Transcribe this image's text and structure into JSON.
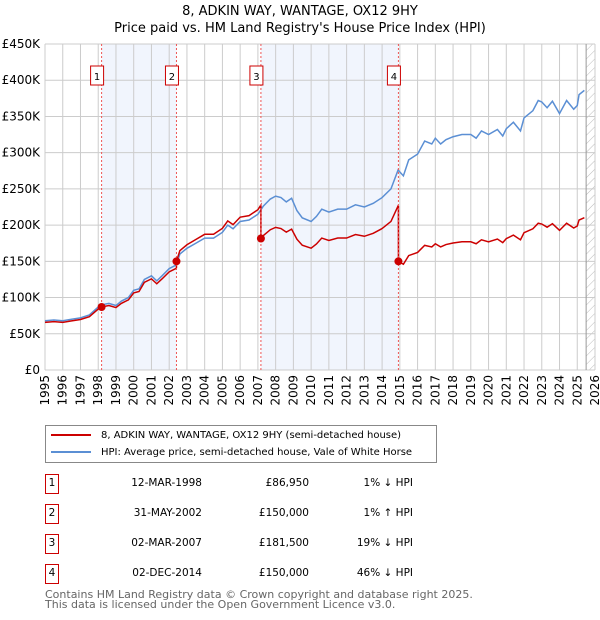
{
  "title": "8, ADKIN WAY, WANTAGE, OX12 9HY",
  "subtitle": "Price paid vs. HM Land Registry's House Price Index (HPI)",
  "chart_data": {
    "type": "line",
    "title": "8, ADKIN WAY, WANTAGE, OX12 9HY",
    "subtitle": "Price paid vs. HM Land Registry's House Price Index (HPI)",
    "xlim": [
      1995,
      2026
    ],
    "ylim": [
      0,
      450000
    ],
    "y_ticks": [
      {
        "v": 0,
        "label": "£0"
      },
      {
        "v": 50000,
        "label": "£50K"
      },
      {
        "v": 100000,
        "label": "£100K"
      },
      {
        "v": 150000,
        "label": "£150K"
      },
      {
        "v": 200000,
        "label": "£200K"
      },
      {
        "v": 250000,
        "label": "£250K"
      },
      {
        "v": 300000,
        "label": "£300K"
      },
      {
        "v": 350000,
        "label": "£350K"
      },
      {
        "v": 400000,
        "label": "£400K"
      },
      {
        "v": 450000,
        "label": "£450K"
      }
    ],
    "x_ticks": [
      "1995",
      "1996",
      "1997",
      "1998",
      "1999",
      "2000",
      "2001",
      "2002",
      "2003",
      "2004",
      "2005",
      "2006",
      "2007",
      "2008",
      "2009",
      "2010",
      "2011",
      "2012",
      "2013",
      "2014",
      "2015",
      "2016",
      "2017",
      "2018",
      "2019",
      "2020",
      "2021",
      "2022",
      "2023",
      "2024",
      "2025",
      "2026"
    ],
    "grid": true,
    "hpi_series": {
      "name": "HPI: Average price, semi-detached house, Vale of White Horse",
      "color": "#5b8fd4",
      "x": [
        1995,
        1995.5,
        1996,
        1996.5,
        1997,
        1997.5,
        1998,
        1998.2,
        1998.6,
        1999,
        1999.3,
        1999.7,
        2000,
        2000.3,
        2000.6,
        2001,
        2001.3,
        2001.6,
        2002,
        2002.4,
        2002.6,
        2003,
        2003.5,
        2004,
        2004.5,
        2005,
        2005.3,
        2005.6,
        2006,
        2006.5,
        2007,
        2007.3,
        2007.7,
        2008,
        2008.3,
        2008.6,
        2008.9,
        2009.2,
        2009.5,
        2010,
        2010.3,
        2010.6,
        2011,
        2011.5,
        2012,
        2012.5,
        2013,
        2013.5,
        2014,
        2014.5,
        2014.9,
        2015.2,
        2015.5,
        2016,
        2016.4,
        2016.8,
        2017,
        2017.3,
        2017.6,
        2018,
        2018.5,
        2019,
        2019.3,
        2019.6,
        2020,
        2020.5,
        2020.8,
        2021,
        2021.4,
        2021.8,
        2022,
        2022.5,
        2022.8,
        2023,
        2023.3,
        2023.6,
        2024,
        2024.4,
        2024.8,
        2025,
        2025.1,
        2025.4
      ],
      "y": [
        68000,
        69000,
        68000,
        70000,
        72000,
        76000,
        87000,
        90000,
        92000,
        89000,
        95000,
        100000,
        110000,
        112000,
        125000,
        130000,
        123000,
        130000,
        140000,
        145000,
        160000,
        168000,
        175000,
        182000,
        182000,
        190000,
        200000,
        195000,
        205000,
        207000,
        215000,
        226000,
        236000,
        240000,
        238000,
        232000,
        237000,
        220000,
        210000,
        205000,
        212000,
        222000,
        218000,
        222000,
        222000,
        228000,
        225000,
        230000,
        238000,
        250000,
        276000,
        268000,
        290000,
        298000,
        316000,
        312000,
        320000,
        312000,
        318000,
        322000,
        325000,
        325000,
        320000,
        330000,
        325000,
        332000,
        323000,
        333000,
        342000,
        330000,
        348000,
        358000,
        372000,
        370000,
        362000,
        371000,
        354000,
        372000,
        360000,
        365000,
        380000,
        386000
      ]
    },
    "price_series": {
      "name": "8, ADKIN WAY, WANTAGE, OX12 9HY (semi-detached house)",
      "color": "#cc0000"
    },
    "sales": [
      {
        "n": "1",
        "x": 1998.19,
        "date": "12-MAR-1998",
        "price": 86950,
        "price_label": "£86,950",
        "hpi": "1% ↓ HPI"
      },
      {
        "n": "2",
        "x": 2002.41,
        "date": "31-MAY-2002",
        "price": 150000,
        "price_label": "£150,000",
        "hpi": "1% ↑ HPI"
      },
      {
        "n": "3",
        "x": 2007.17,
        "date": "02-MAR-2007",
        "price": 181500,
        "price_label": "£181,500",
        "hpi": "19% ↓ HPI"
      },
      {
        "n": "4",
        "x": 2014.92,
        "date": "02-DEC-2014",
        "price": 150000,
        "price_label": "£150,000",
        "hpi": "46% ↓ HPI"
      }
    ],
    "shaded": [
      [
        1998.19,
        2002.41
      ],
      [
        2007.17,
        2014.92
      ]
    ],
    "projection_from": 2025.5,
    "legend_placement": "below"
  },
  "legend": {
    "price": "8, ADKIN WAY, WANTAGE, OX12 9HY (semi-detached house)",
    "hpi": "HPI: Average price, semi-detached house, Vale of White Horse"
  },
  "footer": {
    "line1": "Contains HM Land Registry data © Crown copyright and database right 2025.",
    "line2": "This data is licensed under the Open Government Licence v3.0."
  }
}
